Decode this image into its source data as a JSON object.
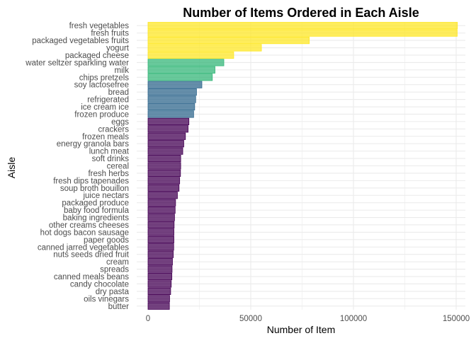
{
  "chart_data": {
    "type": "bar",
    "orientation": "horizontal",
    "title": "Number of Items Ordered in Each Aisle",
    "xlabel": "Number of Item",
    "ylabel": "Aisle",
    "xlim": [
      0,
      152000
    ],
    "xticks": [
      0,
      50000,
      100000,
      150000
    ],
    "xtick_labels": [
      "0",
      "50000",
      "100000",
      "150000"
    ],
    "grid": true,
    "legend": "none",
    "color_groups": {
      "yellow": "#FDE725",
      "green": "#35B779",
      "blue": "#31688E",
      "purple": "#440154"
    },
    "categories": [
      "fresh vegetables",
      "fresh fruits",
      "packaged vegetables fruits",
      "yogurt",
      "packaged cheese",
      "water seltzer sparkling water",
      "milk",
      "chips pretzels",
      "soy lactosefree",
      "bread",
      "refrigerated",
      "ice cream ice",
      "frozen produce",
      "eggs",
      "crackers",
      "frozen meals",
      "energy granola bars",
      "lunch meat",
      "soft drinks",
      "cereal",
      "fresh herbs",
      "fresh dips tapenades",
      "soup broth bouillon",
      "juice nectars",
      "packaged produce",
      "baby food formula",
      "baking ingredients",
      "other creams cheeses",
      "hot dogs bacon sausage",
      "paper goods",
      "canned jarred vegetables",
      "nuts seeds dried fruit",
      "cream",
      "spreads",
      "canned meals beans",
      "candy chocolate",
      "dry pasta",
      "oils vinegars",
      "butter"
    ],
    "values": [
      150600,
      150500,
      78500,
      55200,
      41700,
      36900,
      32600,
      31300,
      26200,
      23600,
      23200,
      22700,
      22200,
      19900,
      19500,
      18200,
      17400,
      16900,
      15900,
      15900,
      15800,
      15400,
      15100,
      14300,
      13400,
      13200,
      12900,
      12700,
      12600,
      12600,
      12500,
      12300,
      11900,
      11700,
      11600,
      11300,
      11000,
      10500,
      10400
    ],
    "bar_color_group": [
      "yellow",
      "yellow",
      "yellow",
      "yellow",
      "yellow",
      "green",
      "green",
      "green",
      "blue",
      "blue",
      "blue",
      "blue",
      "blue",
      "purple",
      "purple",
      "purple",
      "purple",
      "purple",
      "purple",
      "purple",
      "purple",
      "purple",
      "purple",
      "purple",
      "purple",
      "purple",
      "purple",
      "purple",
      "purple",
      "purple",
      "purple",
      "purple",
      "purple",
      "purple",
      "purple",
      "purple",
      "purple",
      "purple",
      "purple"
    ]
  }
}
